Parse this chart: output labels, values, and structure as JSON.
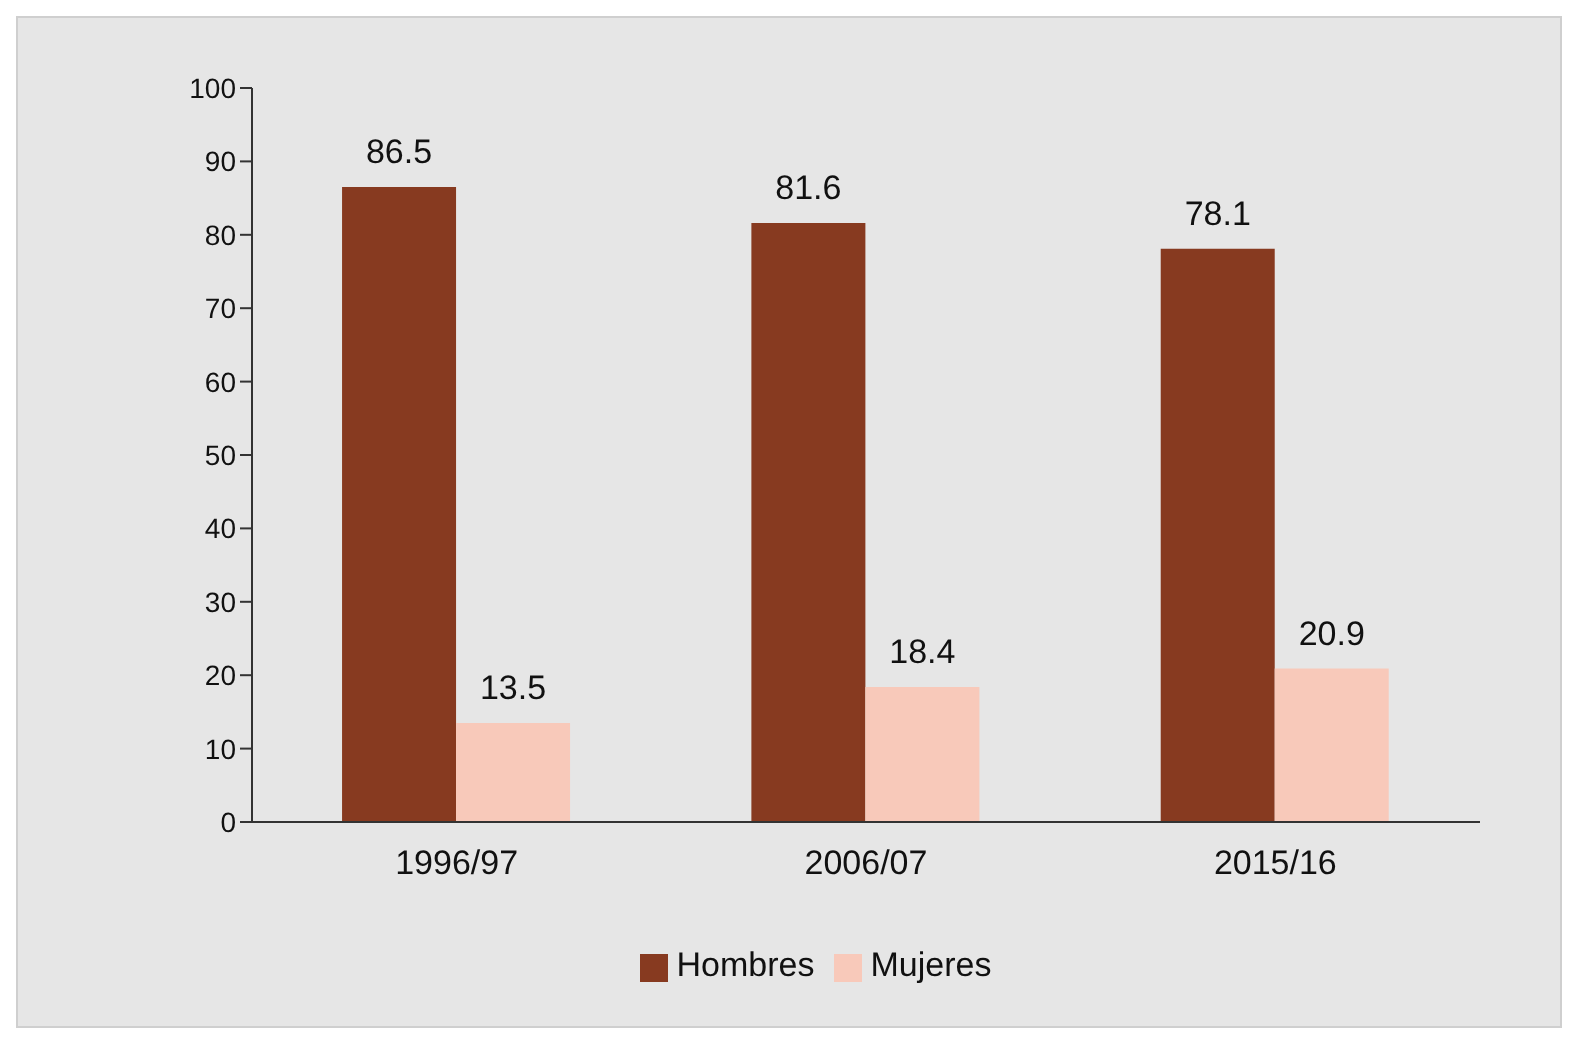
{
  "chart_data": {
    "type": "bar",
    "categories": [
      "1996/97",
      "2006/07",
      "2015/16"
    ],
    "series": [
      {
        "name": "Hombres",
        "color": "#873a20",
        "values": [
          86.5,
          81.6,
          78.1
        ]
      },
      {
        "name": "Mujeres",
        "color": "#f8c9ba",
        "values": [
          13.5,
          18.4,
          20.9
        ]
      }
    ],
    "ylim": [
      0,
      100
    ],
    "yticks": [
      0,
      10,
      20,
      30,
      40,
      50,
      60,
      70,
      80,
      90,
      100
    ],
    "grid": false,
    "legend": "bottom",
    "data_labels": true
  }
}
